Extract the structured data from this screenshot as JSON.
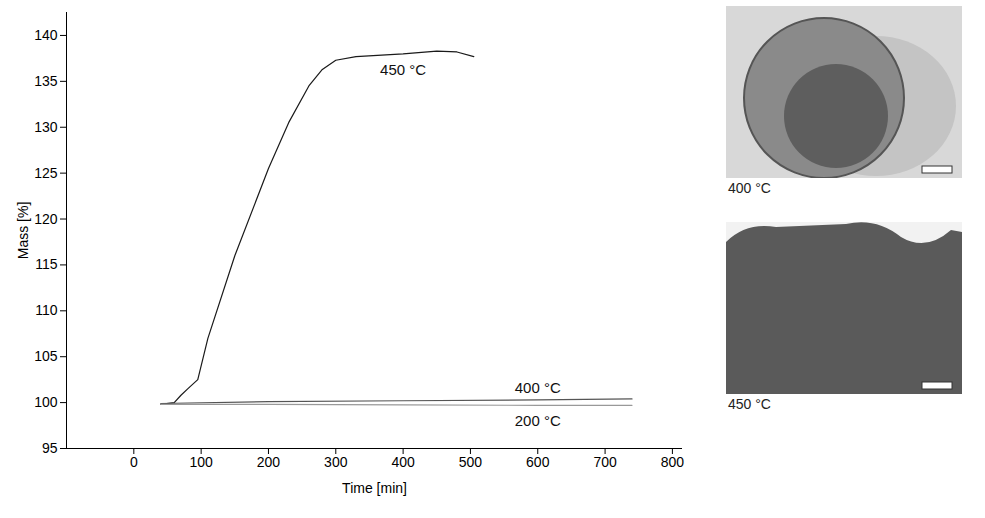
{
  "chart_data": {
    "type": "line",
    "x_label": "Time [min]",
    "y_label": "Mass [%]",
    "xlim": [
      -100,
      815
    ],
    "xticks": [
      0,
      100,
      200,
      300,
      400,
      500,
      600,
      700,
      800
    ],
    "ylim": [
      95,
      142.5
    ],
    "yticks": [
      95,
      100,
      105,
      110,
      115,
      120,
      125,
      130,
      135,
      140
    ],
    "grid": false,
    "series": [
      {
        "name": "450 °C",
        "color": "#1a1a1a",
        "x": [
          40,
          60,
          70,
          80,
          95,
          110,
          150,
          200,
          230,
          260,
          280,
          300,
          330,
          400,
          450,
          480,
          505
        ],
        "values": [
          99.8,
          100,
          100.8,
          101.5,
          102.5,
          107,
          116,
          125.5,
          130.5,
          134.5,
          136.3,
          137.3,
          137.7,
          138,
          138.3,
          138.2,
          137.7
        ]
      },
      {
        "name": "400 °C",
        "color": "#555555",
        "x": [
          40,
          200,
          400,
          600,
          740
        ],
        "values": [
          99.9,
          100.1,
          100.2,
          100.3,
          100.4
        ]
      },
      {
        "name": "200 °C",
        "color": "#999999",
        "x": [
          40,
          200,
          400,
          600,
          740
        ],
        "values": [
          99.8,
          99.8,
          99.75,
          99.7,
          99.7
        ]
      }
    ]
  },
  "photos": [
    {
      "caption": "400 °C"
    },
    {
      "caption": "450 °C"
    }
  ]
}
